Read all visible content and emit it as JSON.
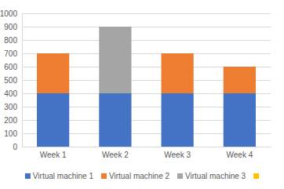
{
  "chart_data": {
    "type": "bar",
    "stacked": true,
    "categories": [
      "Week 1",
      "Week 2",
      "Week 3",
      "Week 4"
    ],
    "series": [
      {
        "name": "Virtual machine 1",
        "color": "#4472c4",
        "values": [
          400,
          400,
          400,
          400
        ]
      },
      {
        "name": "Virtual machine 2",
        "color": "#ed7d31",
        "values": [
          300,
          0,
          300,
          200
        ]
      },
      {
        "name": "Virtual machine 3",
        "color": "#a5a5a5",
        "values": [
          0,
          500,
          0,
          0
        ]
      },
      {
        "name": null,
        "color": "#ffc000",
        "values": [
          null,
          null,
          null,
          null
        ]
      }
    ],
    "ylim": [
      0,
      1000
    ],
    "yticks": [
      0,
      100,
      200,
      300,
      400,
      500,
      600,
      700,
      800,
      900,
      1000
    ],
    "grid": true,
    "legend": "bottom"
  }
}
